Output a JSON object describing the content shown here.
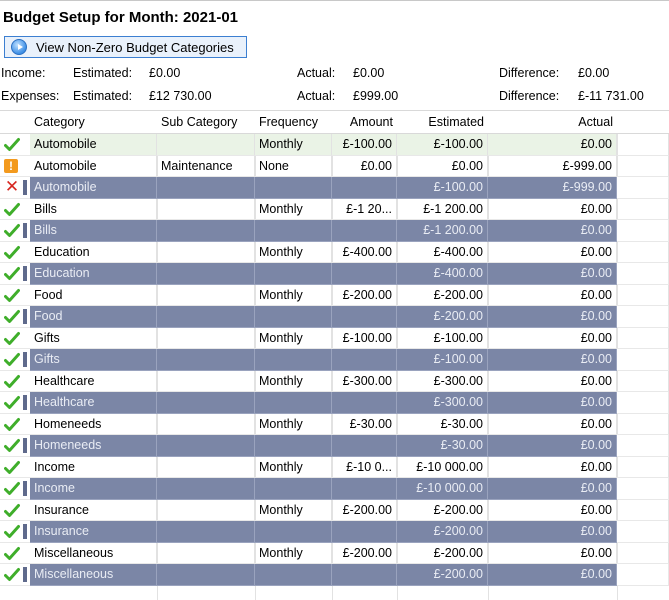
{
  "title": "Budget Setup for Month: 2021-01",
  "view_button": {
    "label": "View Non-Zero Budget Categories",
    "icon": "play-circle-icon"
  },
  "summary": {
    "income": {
      "label": "Income:",
      "estimated_label": "Estimated:",
      "estimated": "£0.00",
      "actual_label": "Actual:",
      "actual": "£0.00",
      "difference_label": "Difference:",
      "difference": "£0.00"
    },
    "expenses": {
      "label": "Expenses:",
      "estimated_label": "Estimated:",
      "estimated": "£12 730.00",
      "actual_label": "Actual:",
      "actual": "£999.00",
      "difference_label": "Difference:",
      "difference": "£-11 731.00"
    }
  },
  "columns": [
    "Category",
    "Sub Category",
    "Frequency",
    "Amount",
    "Estimated",
    "Actual"
  ],
  "rows": [
    {
      "status": "check",
      "type": "normal",
      "selected": true,
      "category": "Automobile",
      "sub": "",
      "freq": "Monthly",
      "amount": "£-100.00",
      "estimated": "£-100.00",
      "actual": "£0.00"
    },
    {
      "status": "warn",
      "type": "normal",
      "category": "Automobile",
      "sub": "Maintenance",
      "freq": "None",
      "amount": "£0.00",
      "estimated": "£0.00",
      "actual": "£-999.00"
    },
    {
      "status": "x",
      "type": "summary",
      "category": "Automobile",
      "sub": "",
      "freq": "",
      "amount": "",
      "estimated": "£-100.00",
      "actual": "£-999.00"
    },
    {
      "status": "check",
      "type": "normal",
      "category": "Bills",
      "sub": "",
      "freq": "Monthly",
      "amount": "£-1 20...",
      "estimated": "£-1 200.00",
      "actual": "£0.00"
    },
    {
      "status": "check",
      "type": "summary",
      "category": "Bills",
      "sub": "",
      "freq": "",
      "amount": "",
      "estimated": "£-1 200.00",
      "actual": "£0.00"
    },
    {
      "status": "check",
      "type": "normal",
      "category": "Education",
      "sub": "",
      "freq": "Monthly",
      "amount": "£-400.00",
      "estimated": "£-400.00",
      "actual": "£0.00"
    },
    {
      "status": "check",
      "type": "summary",
      "category": "Education",
      "sub": "",
      "freq": "",
      "amount": "",
      "estimated": "£-400.00",
      "actual": "£0.00"
    },
    {
      "status": "check",
      "type": "normal",
      "category": "Food",
      "sub": "",
      "freq": "Monthly",
      "amount": "£-200.00",
      "estimated": "£-200.00",
      "actual": "£0.00"
    },
    {
      "status": "check",
      "type": "summary",
      "category": "Food",
      "sub": "",
      "freq": "",
      "amount": "",
      "estimated": "£-200.00",
      "actual": "£0.00"
    },
    {
      "status": "check",
      "type": "normal",
      "category": "Gifts",
      "sub": "",
      "freq": "Monthly",
      "amount": "£-100.00",
      "estimated": "£-100.00",
      "actual": "£0.00"
    },
    {
      "status": "check",
      "type": "summary",
      "category": "Gifts",
      "sub": "",
      "freq": "",
      "amount": "",
      "estimated": "£-100.00",
      "actual": "£0.00"
    },
    {
      "status": "check",
      "type": "normal",
      "category": "Healthcare",
      "sub": "",
      "freq": "Monthly",
      "amount": "£-300.00",
      "estimated": "£-300.00",
      "actual": "£0.00"
    },
    {
      "status": "check",
      "type": "summary",
      "category": "Healthcare",
      "sub": "",
      "freq": "",
      "amount": "",
      "estimated": "£-300.00",
      "actual": "£0.00"
    },
    {
      "status": "check",
      "type": "normal",
      "category": "Homeneeds",
      "sub": "",
      "freq": "Monthly",
      "amount": "£-30.00",
      "estimated": "£-30.00",
      "actual": "£0.00"
    },
    {
      "status": "check",
      "type": "summary",
      "category": "Homeneeds",
      "sub": "",
      "freq": "",
      "amount": "",
      "estimated": "£-30.00",
      "actual": "£0.00"
    },
    {
      "status": "check",
      "type": "normal",
      "category": "Income",
      "sub": "",
      "freq": "Monthly",
      "amount": "£-10 0...",
      "estimated": "£-10 000.00",
      "actual": "£0.00"
    },
    {
      "status": "check",
      "type": "summary",
      "category": "Income",
      "sub": "",
      "freq": "",
      "amount": "",
      "estimated": "£-10 000.00",
      "actual": "£0.00"
    },
    {
      "status": "check",
      "type": "normal",
      "category": "Insurance",
      "sub": "",
      "freq": "Monthly",
      "amount": "£-200.00",
      "estimated": "£-200.00",
      "actual": "£0.00"
    },
    {
      "status": "check",
      "type": "summary",
      "category": "Insurance",
      "sub": "",
      "freq": "",
      "amount": "",
      "estimated": "£-200.00",
      "actual": "£0.00"
    },
    {
      "status": "check",
      "type": "normal",
      "category": "Miscellaneous",
      "sub": "",
      "freq": "Monthly",
      "amount": "£-200.00",
      "estimated": "£-200.00",
      "actual": "£0.00"
    },
    {
      "status": "check",
      "type": "summary",
      "category": "Miscellaneous",
      "sub": "",
      "freq": "",
      "amount": "",
      "estimated": "£-200.00",
      "actual": "£0.00"
    }
  ],
  "colors": {
    "summary_row": "#7b86a6",
    "check": "#3fae2a",
    "warn": "#f39a1e",
    "error": "#d7261f",
    "selected_row": "#eaf3e6",
    "button_border": "#3c7fd1"
  }
}
